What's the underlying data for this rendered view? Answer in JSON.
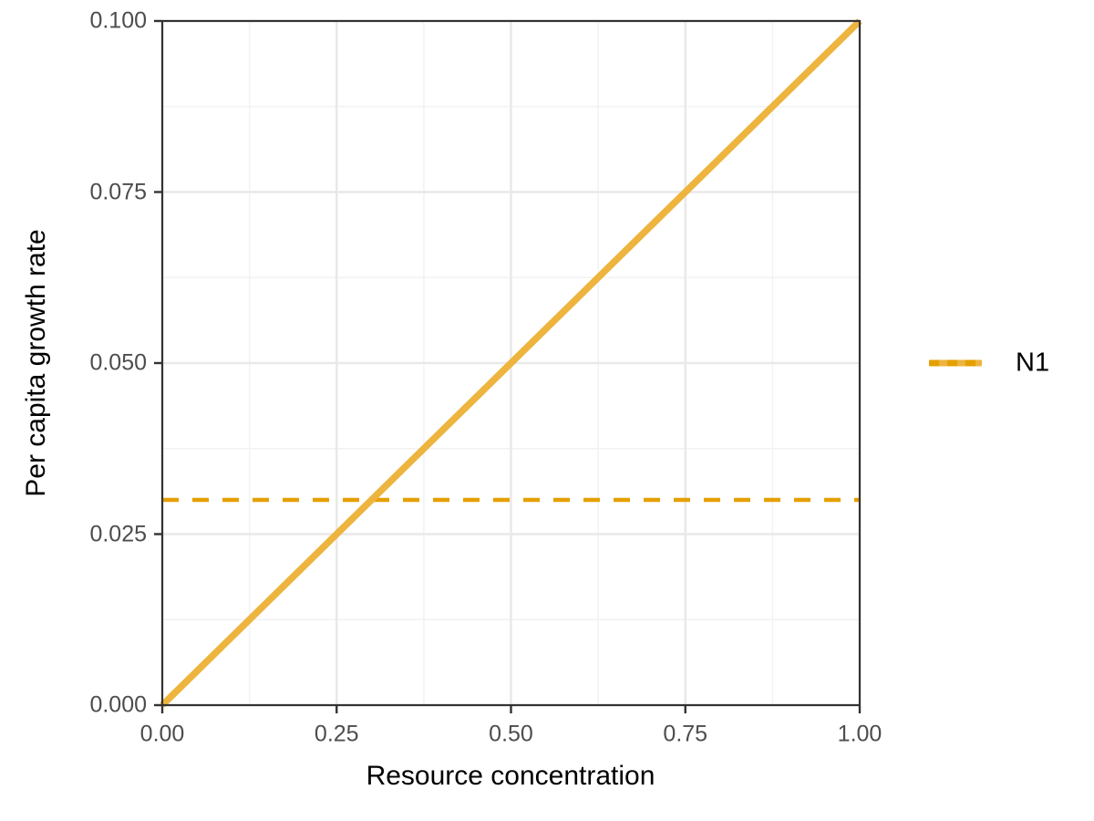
{
  "chart_data": {
    "type": "line",
    "title": "",
    "xlabel": "Resource concentration",
    "ylabel": "Per capita growth rate",
    "xlim": [
      0,
      1
    ],
    "ylim": [
      0,
      0.1
    ],
    "x_ticks": [
      0,
      0.25,
      0.5,
      0.75,
      1.0
    ],
    "x_tick_labels": [
      "0.00",
      "0.25",
      "0.50",
      "0.75",
      "1.00"
    ],
    "y_ticks": [
      0,
      0.025,
      0.05,
      0.075,
      0.1
    ],
    "y_tick_labels": [
      "0.000",
      "0.025",
      "0.050",
      "0.075",
      "0.100"
    ],
    "grid": "major+minor",
    "legend_position": "right",
    "series": [
      {
        "name": "N1",
        "style": "solid",
        "color": "#EDB43E",
        "stroke_width": 7.5,
        "points": [
          [
            0,
            0
          ],
          [
            1,
            0.1
          ]
        ]
      }
    ],
    "reference_lines": [
      {
        "orientation": "horizontal",
        "y": 0.03,
        "style": "dashed",
        "color": "#E69F00",
        "stroke_width": 4.5
      }
    ],
    "legend": {
      "items": [
        {
          "label": "N1",
          "color": "#EDB43E",
          "dash_overlay_color": "#E69F00"
        }
      ]
    },
    "theme": {
      "panel_background": "#FFFFFF",
      "panel_border_color": "#333333",
      "grid_major_color": "#E9E9E9",
      "grid_minor_color": "#F2F2F2",
      "tick_mark_color": "#333333",
      "tick_label_color": "#4D4D4D",
      "axis_title_color": "#000000"
    }
  }
}
